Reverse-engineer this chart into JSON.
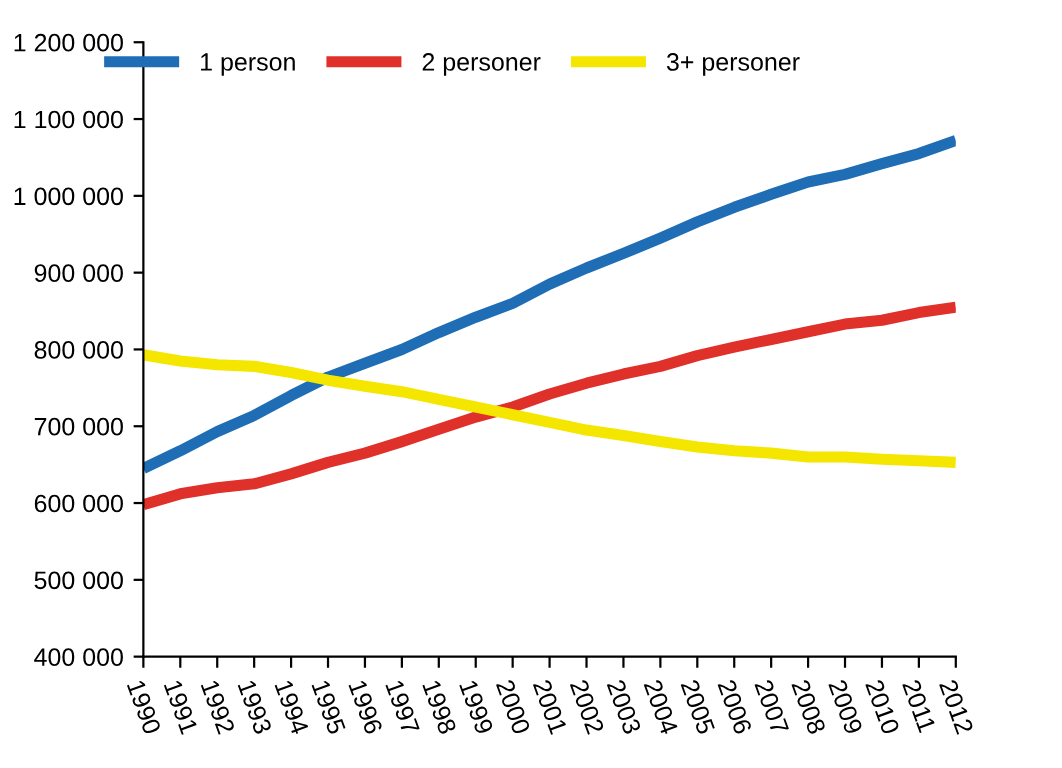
{
  "chart_data": {
    "type": "line",
    "categories": [
      "1990",
      "1991",
      "1992",
      "1993",
      "1994",
      "1995",
      "1996",
      "1997",
      "1998",
      "1999",
      "2000",
      "2001",
      "2002",
      "2003",
      "2004",
      "2005",
      "2006",
      "2007",
      "2008",
      "2009",
      "2010",
      "2011",
      "2012"
    ],
    "series": [
      {
        "name": "1 person",
        "color": "#1f6db4",
        "values": [
          645000,
          668000,
          693000,
          714000,
          740000,
          764000,
          782000,
          800000,
          822000,
          842000,
          860000,
          885000,
          906000,
          925000,
          945000,
          966000,
          985000,
          1002000,
          1018000,
          1028000,
          1042000,
          1055000,
          1072000
        ]
      },
      {
        "name": "2 personer",
        "color": "#e0302a",
        "values": [
          598000,
          612000,
          620000,
          625000,
          638000,
          653000,
          665000,
          680000,
          696000,
          712000,
          725000,
          742000,
          756000,
          768000,
          778000,
          792000,
          803000,
          813000,
          823000,
          833000,
          838000,
          848000,
          855000
        ]
      },
      {
        "name": "3+ personer",
        "color": "#f5e600",
        "values": [
          793000,
          785000,
          780000,
          778000,
          770000,
          760000,
          752000,
          745000,
          735000,
          725000,
          715000,
          705000,
          695000,
          688000,
          680000,
          673000,
          668000,
          665000,
          660000,
          660000,
          657000,
          655000,
          653000
        ]
      }
    ],
    "ylim": [
      400000,
      1200000
    ],
    "yticks": [
      {
        "value": 400000,
        "label": "400 000"
      },
      {
        "value": 500000,
        "label": "500 000"
      },
      {
        "value": 600000,
        "label": "600 000"
      },
      {
        "value": 700000,
        "label": "700 000"
      },
      {
        "value": 800000,
        "label": "800 000"
      },
      {
        "value": 900000,
        "label": "900 000"
      },
      {
        "value": 1000000,
        "label": "1 000 000"
      },
      {
        "value": 1100000,
        "label": "1 100 000"
      },
      {
        "value": 1200000,
        "label": "1 200 000"
      }
    ],
    "grid": false,
    "legend": "top",
    "marker": "none",
    "line_style": "solid"
  }
}
